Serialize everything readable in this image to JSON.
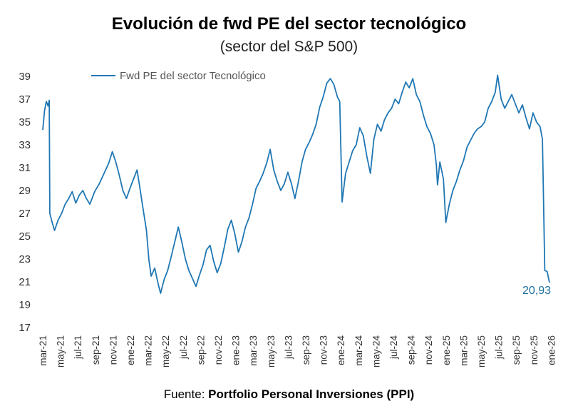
{
  "chart_data": {
    "type": "line",
    "title": "Evolución de fwd PE del sector tecnológico",
    "subtitle": "(sector del S&P 500)",
    "source_prefix": "Fuente: ",
    "source_name": "Portfolio Personal Inversiones (PPI)",
    "ylim": [
      17,
      39
    ],
    "yticks": [
      39,
      37,
      35,
      33,
      31,
      29,
      27,
      25,
      23,
      21,
      19,
      17
    ],
    "grid": false,
    "legend_position": "top-left",
    "line_color": "#1f77b4",
    "end_label": "20,93",
    "xticks": [
      "mar-21",
      "may-21",
      "jul-21",
      "sep-21",
      "nov-21",
      "ene-22",
      "mar-22",
      "may-22",
      "jul-22",
      "sep-22",
      "nov-22",
      "ene-23",
      "mar-23",
      "may-23",
      "jul-23",
      "sep-23",
      "nov-23",
      "ene-24",
      "mar-24",
      "may-24",
      "jul-24",
      "sep-24",
      "nov-24",
      "ene-25",
      "mar-25",
      "may-25",
      "jul-25",
      "sep-25",
      "nov-25",
      "ene-26"
    ],
    "series": [
      {
        "name": "Fwd PE del sector Tecnológico",
        "points": [
          [
            0,
            34.3
          ],
          [
            0.15,
            36.0
          ],
          [
            0.3,
            36.8
          ],
          [
            0.45,
            36.4
          ],
          [
            0.55,
            36.9
          ],
          [
            0.6,
            27.0
          ],
          [
            0.8,
            26.2
          ],
          [
            1.0,
            25.5
          ],
          [
            1.3,
            26.4
          ],
          [
            1.6,
            27.0
          ],
          [
            1.9,
            27.8
          ],
          [
            2.2,
            28.3
          ],
          [
            2.5,
            28.9
          ],
          [
            2.8,
            27.9
          ],
          [
            3.1,
            28.6
          ],
          [
            3.4,
            29.0
          ],
          [
            3.7,
            28.3
          ],
          [
            4.0,
            27.8
          ],
          [
            4.4,
            28.9
          ],
          [
            4.8,
            29.6
          ],
          [
            5.2,
            30.5
          ],
          [
            5.6,
            31.4
          ],
          [
            5.9,
            32.4
          ],
          [
            6.2,
            31.5
          ],
          [
            6.5,
            30.3
          ],
          [
            6.8,
            29.0
          ],
          [
            7.1,
            28.3
          ],
          [
            7.4,
            29.2
          ],
          [
            7.7,
            30.0
          ],
          [
            8.0,
            30.8
          ],
          [
            8.2,
            29.5
          ],
          [
            8.5,
            27.5
          ],
          [
            8.8,
            25.5
          ],
          [
            9.0,
            23.0
          ],
          [
            9.2,
            21.5
          ],
          [
            9.5,
            22.2
          ],
          [
            9.8,
            20.8
          ],
          [
            10.0,
            20.0
          ],
          [
            10.3,
            21.2
          ],
          [
            10.6,
            22.0
          ],
          [
            10.9,
            23.2
          ],
          [
            11.2,
            24.5
          ],
          [
            11.5,
            25.8
          ],
          [
            11.8,
            24.5
          ],
          [
            12.1,
            23.0
          ],
          [
            12.4,
            22.0
          ],
          [
            12.7,
            21.3
          ],
          [
            13.0,
            20.6
          ],
          [
            13.3,
            21.6
          ],
          [
            13.6,
            22.5
          ],
          [
            13.9,
            23.8
          ],
          [
            14.2,
            24.2
          ],
          [
            14.5,
            22.8
          ],
          [
            14.8,
            21.8
          ],
          [
            15.1,
            22.6
          ],
          [
            15.4,
            24.0
          ],
          [
            15.7,
            25.6
          ],
          [
            16.0,
            26.4
          ],
          [
            16.3,
            25.2
          ],
          [
            16.6,
            23.6
          ],
          [
            16.9,
            24.5
          ],
          [
            17.2,
            25.8
          ],
          [
            17.5,
            26.6
          ],
          [
            17.8,
            27.8
          ],
          [
            18.1,
            29.2
          ],
          [
            18.4,
            29.8
          ],
          [
            18.7,
            30.5
          ],
          [
            19.0,
            31.4
          ],
          [
            19.3,
            32.6
          ],
          [
            19.6,
            30.8
          ],
          [
            19.9,
            29.8
          ],
          [
            20.2,
            29.0
          ],
          [
            20.5,
            29.6
          ],
          [
            20.8,
            30.6
          ],
          [
            21.1,
            29.6
          ],
          [
            21.4,
            28.3
          ],
          [
            21.7,
            29.8
          ],
          [
            22.0,
            31.5
          ],
          [
            22.3,
            32.6
          ],
          [
            22.6,
            33.2
          ],
          [
            22.9,
            33.9
          ],
          [
            23.2,
            34.8
          ],
          [
            23.5,
            36.3
          ],
          [
            23.8,
            37.2
          ],
          [
            24.1,
            38.4
          ],
          [
            24.4,
            38.8
          ],
          [
            24.7,
            38.3
          ],
          [
            25.0,
            37.2
          ],
          [
            25.2,
            36.8
          ],
          [
            25.4,
            28.0
          ],
          [
            25.7,
            30.5
          ],
          [
            26.0,
            31.5
          ],
          [
            26.3,
            32.5
          ],
          [
            26.6,
            33.0
          ],
          [
            26.9,
            34.5
          ],
          [
            27.2,
            33.8
          ],
          [
            27.5,
            32.0
          ],
          [
            27.8,
            30.5
          ],
          [
            28.1,
            33.5
          ],
          [
            28.4,
            34.8
          ],
          [
            28.7,
            34.2
          ],
          [
            29.0,
            35.2
          ],
          [
            29.3,
            35.8
          ],
          [
            29.6,
            36.2
          ],
          [
            29.9,
            37.0
          ],
          [
            30.2,
            36.6
          ],
          [
            30.5,
            37.6
          ],
          [
            30.8,
            38.5
          ],
          [
            31.1,
            38.0
          ],
          [
            31.4,
            38.8
          ],
          [
            31.7,
            37.4
          ],
          [
            32.0,
            36.8
          ],
          [
            32.3,
            35.6
          ],
          [
            32.6,
            34.6
          ],
          [
            32.9,
            34.0
          ],
          [
            33.2,
            33.0
          ],
          [
            33.4,
            31.2
          ],
          [
            33.5,
            29.5
          ],
          [
            33.7,
            31.5
          ],
          [
            34.0,
            30.0
          ],
          [
            34.2,
            26.2
          ],
          [
            34.5,
            27.8
          ],
          [
            34.8,
            29.0
          ],
          [
            35.1,
            29.8
          ],
          [
            35.4,
            30.8
          ],
          [
            35.7,
            31.6
          ],
          [
            36.0,
            32.8
          ],
          [
            36.3,
            33.4
          ],
          [
            36.6,
            34.0
          ],
          [
            36.9,
            34.4
          ],
          [
            37.2,
            34.6
          ],
          [
            37.5,
            35.0
          ],
          [
            37.8,
            36.2
          ],
          [
            38.1,
            36.8
          ],
          [
            38.4,
            37.6
          ],
          [
            38.6,
            39.1
          ],
          [
            38.9,
            37.0
          ],
          [
            39.2,
            36.2
          ],
          [
            39.5,
            36.8
          ],
          [
            39.8,
            37.4
          ],
          [
            40.1,
            36.6
          ],
          [
            40.4,
            35.8
          ],
          [
            40.7,
            36.5
          ],
          [
            41.0,
            35.4
          ],
          [
            41.3,
            34.4
          ],
          [
            41.6,
            35.8
          ],
          [
            41.9,
            35.0
          ],
          [
            42.2,
            34.6
          ],
          [
            42.4,
            33.5
          ],
          [
            42.6,
            22.0
          ],
          [
            42.8,
            21.9
          ],
          [
            43.0,
            20.93
          ]
        ]
      }
    ]
  }
}
